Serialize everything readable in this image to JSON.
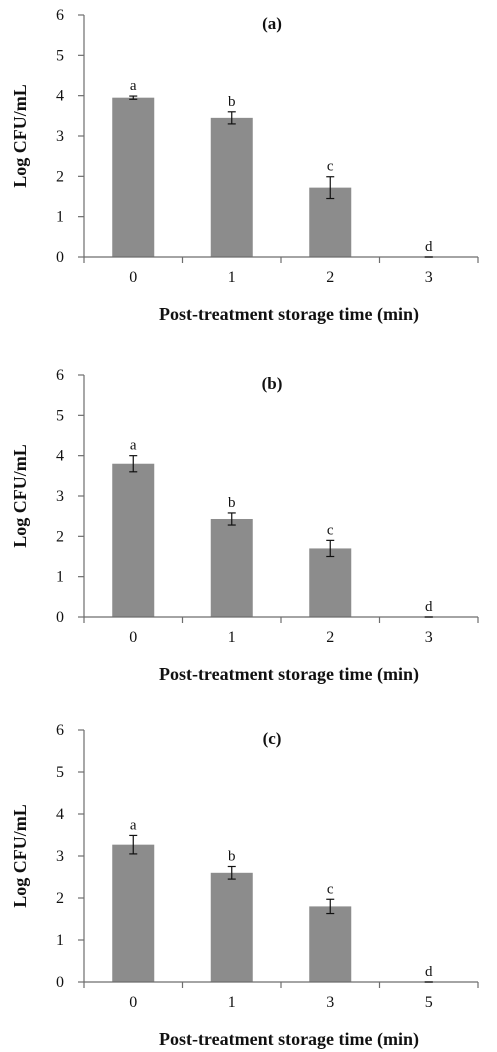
{
  "figure": {
    "bar_color": "#8c8c8c",
    "axis_color": "#6d6d6d",
    "text_color": "#111111"
  },
  "chart_data": [
    {
      "type": "bar",
      "title": "(a)",
      "xlabel": "Post-treatment storage time (min)",
      "ylabel": "Log CFU/mL",
      "categories": [
        "0",
        "1",
        "2",
        "3"
      ],
      "values": [
        3.95,
        3.45,
        1.72,
        0
      ],
      "errors": [
        0.04,
        0.15,
        0.27,
        0
      ],
      "significance_labels": [
        "a",
        "b",
        "c",
        "d"
      ],
      "ylim": [
        0,
        6
      ],
      "yticks": [
        "0",
        "1",
        "2",
        "3",
        "4",
        "5",
        "6"
      ],
      "grid": false
    },
    {
      "type": "bar",
      "title": "(b)",
      "xlabel": "Post-treatment storage time (min)",
      "ylabel": "Log CFU/mL",
      "categories": [
        "0",
        "1",
        "2",
        "3"
      ],
      "values": [
        3.8,
        2.43,
        1.7,
        0
      ],
      "errors": [
        0.2,
        0.15,
        0.2,
        0
      ],
      "significance_labels": [
        "a",
        "b",
        "c",
        "d"
      ],
      "ylim": [
        0,
        6
      ],
      "yticks": [
        "0",
        "1",
        "2",
        "3",
        "4",
        "5",
        "6"
      ],
      "grid": false
    },
    {
      "type": "bar",
      "title": "(c)",
      "xlabel": "Post-treatment storage time (min)",
      "ylabel": "Log CFU/mL",
      "categories": [
        "0",
        "1",
        "3",
        "5"
      ],
      "values": [
        3.27,
        2.6,
        1.8,
        0
      ],
      "errors": [
        0.22,
        0.15,
        0.17,
        0
      ],
      "significance_labels": [
        "a",
        "b",
        "c",
        "d"
      ],
      "ylim": [
        0,
        6
      ],
      "yticks": [
        "0",
        "1",
        "2",
        "3",
        "4",
        "5",
        "6"
      ],
      "grid": false
    }
  ]
}
